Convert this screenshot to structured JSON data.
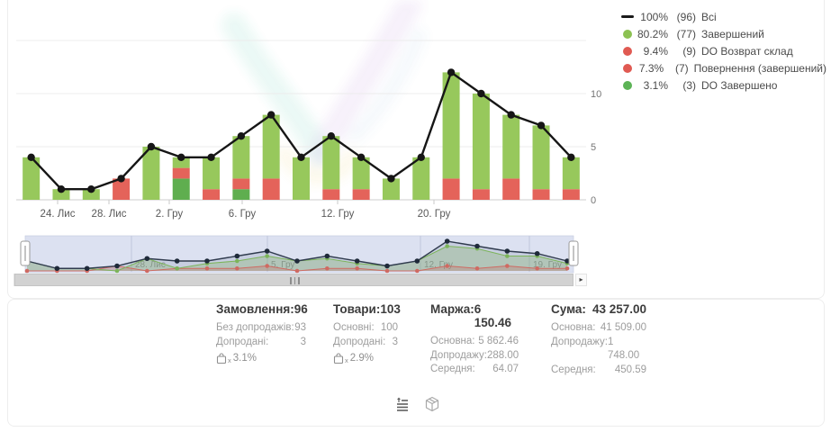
{
  "legend": {
    "items": [
      {
        "marker": "line",
        "color": "#1a1a1a",
        "pct": "100%",
        "count": "(96)",
        "label": "Всі"
      },
      {
        "marker": "dot",
        "color": "#8cc152",
        "pct": "80.2%",
        "count": "(77)",
        "label": "Завершений"
      },
      {
        "marker": "dot",
        "color": "#e05a52",
        "pct": "9.4%",
        "count": "(9)",
        "label": "DO Возврат склад"
      },
      {
        "marker": "dot",
        "color": "#e05a52",
        "pct": "7.3%",
        "count": "(7)",
        "label": "Повернення (завершений)"
      },
      {
        "marker": "dot",
        "color": "#5cb356",
        "pct": "3.1%",
        "count": "(3)",
        "label": "DO Завершено"
      }
    ]
  },
  "chart_data": {
    "type": "bar",
    "stacked": true,
    "title": "",
    "xlabel": "",
    "ylabel": "",
    "ylim": [
      0,
      15
    ],
    "grid": true,
    "legend_position": "top-right",
    "y_ticks": [
      {
        "value": 0,
        "label": "0"
      },
      {
        "value": 5,
        "label": "5"
      },
      {
        "value": 10,
        "label": "10"
      }
    ],
    "gridline_values": [
      5,
      10,
      15
    ],
    "x_ticks": [
      {
        "label": "24. Лис",
        "x": 64
      },
      {
        "label": "28. Лис",
        "x": 121
      },
      {
        "label": "2. Гру",
        "x": 188
      },
      {
        "label": "6. Гру",
        "x": 269
      },
      {
        "label": "12. Гру",
        "x": 375
      },
      {
        "label": "20. Гру",
        "x": 482
      }
    ],
    "series": [
      {
        "name": "Всі",
        "type": "line",
        "color": "#161616",
        "total": 96,
        "values": [
          4,
          1,
          1,
          2,
          5,
          4,
          4,
          6,
          8,
          4,
          6,
          4,
          2,
          4,
          12,
          10,
          8,
          7,
          4
        ]
      },
      {
        "name": "Завершений",
        "type": "bar",
        "color": "#97c85c",
        "total": 77,
        "values": [
          4,
          1,
          1,
          0,
          5,
          1,
          3,
          4,
          6,
          4,
          5,
          3,
          2,
          4,
          10,
          9,
          6,
          6,
          3
        ]
      },
      {
        "name": "Повернення / DO Возврат склад",
        "type": "bar",
        "color": "#e4635a",
        "total": 16,
        "values": [
          0,
          0,
          0,
          2,
          0,
          1,
          1,
          1,
          2,
          0,
          1,
          1,
          0,
          0,
          2,
          1,
          2,
          1,
          1
        ]
      },
      {
        "name": "DO Завершено",
        "type": "bar",
        "color": "#5fae4f",
        "total": 3,
        "values": [
          0,
          0,
          0,
          0,
          0,
          2,
          0,
          1,
          0,
          0,
          0,
          0,
          0,
          0,
          0,
          0,
          0,
          0,
          0
        ]
      }
    ],
    "stack_order_bottom_to_top": [
      "DO Завершено",
      "Повернення / DO Возврат склад",
      "Завершений"
    ]
  },
  "minimap": {
    "background": "#dce1f1",
    "border": "#c6cce0",
    "grid_color": "#b9c0d8",
    "label_color": "#8f919e",
    "labels": [
      {
        "text": "28. Лис",
        "x": 146
      },
      {
        "text": "5. Гру",
        "x": 297
      },
      {
        "text": "12. Гру",
        "x": 467
      },
      {
        "text": "19. Гру",
        "x": 588
      }
    ],
    "series_colors": {
      "all": "#303b4e",
      "completed": "#7cb45a",
      "returns": "#cf6a62"
    }
  },
  "scrollbar": {
    "left_icon": "scroll-left-icon",
    "right_icon": "scroll-right-icon",
    "grip_icon": "grip-icon"
  },
  "stats": {
    "columns": [
      {
        "title": "Замовлення:",
        "value": "96",
        "rows": [
          {
            "label": "Без допродажів:",
            "value": "93"
          },
          {
            "label": "Допродані:",
            "value": "3"
          }
        ],
        "upsell_pct": "3.1%"
      },
      {
        "title": "Товари:",
        "value": "103",
        "rows": [
          {
            "label": "Основні:",
            "value": "100"
          },
          {
            "label": "Допродані:",
            "value": "3"
          }
        ],
        "upsell_pct": "2.9%"
      },
      {
        "title": "Маржа:",
        "value": "6 150.46",
        "rows": [
          {
            "label": "Основна:",
            "value": "5 862.46"
          },
          {
            "label": "Допродажу:",
            "value": "288.00"
          },
          {
            "label": "Середня:",
            "value": "64.07"
          }
        ]
      },
      {
        "title": "Сума:",
        "value": "43 257.00",
        "rows": [
          {
            "label": "Основна:",
            "value": "41 509.00"
          },
          {
            "label": "Допродажу:",
            "value": "1 748.00"
          },
          {
            "label": "Середня:",
            "value": "450.59"
          }
        ]
      }
    ]
  },
  "toolbar": {
    "icons": [
      "summary-list-icon",
      "package-icon"
    ]
  }
}
